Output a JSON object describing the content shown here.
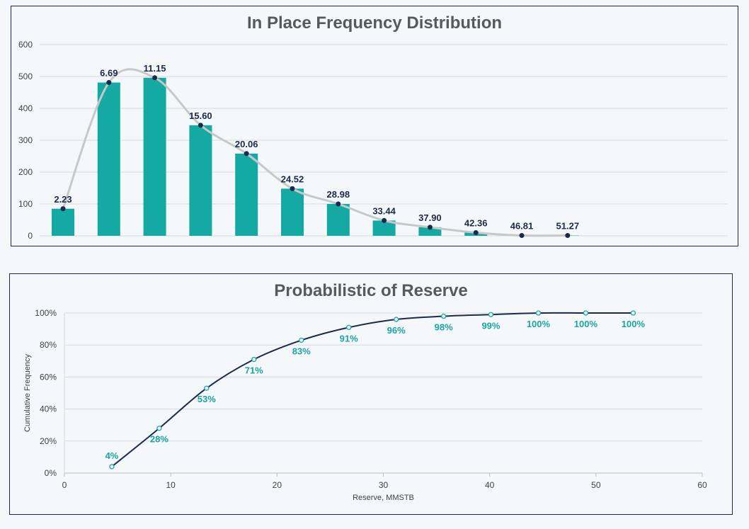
{
  "chart_data": [
    {
      "type": "bar",
      "title": "In Place Frequency Distribution",
      "xlabel": "",
      "ylabel": "",
      "ylim": [
        0,
        600
      ],
      "yticks": [
        "0",
        "100",
        "200",
        "300",
        "400",
        "500",
        "600"
      ],
      "grid": true,
      "categories": [
        "2.23",
        "6.69",
        "11.15",
        "15.60",
        "20.06",
        "24.52",
        "28.98",
        "33.44",
        "37.90",
        "42.36",
        "46.81",
        "51.27"
      ],
      "values": [
        85,
        481,
        496,
        347,
        258,
        148,
        100,
        48,
        27,
        10,
        1,
        1
      ],
      "line_points": [
        85,
        481,
        496,
        347,
        258,
        148,
        100,
        48,
        27,
        10,
        1,
        1
      ],
      "bar_color": "#14a9a3",
      "line_color": "#c8c8c8",
      "marker_color": "#1c2a4a"
    },
    {
      "type": "line",
      "title": "Probabilistic of Reserve",
      "xlabel": "Reserve, MMSTB",
      "ylabel": "Cumulative Frequency",
      "xlim": [
        0,
        60
      ],
      "ylim": [
        0,
        100
      ],
      "xticks": [
        "0",
        "10",
        "20",
        "30",
        "40",
        "50",
        "60"
      ],
      "yticks": [
        "0%",
        "20%",
        "40%",
        "60%",
        "80%",
        "100%"
      ],
      "grid": true,
      "x": [
        4.46,
        8.92,
        13.37,
        17.83,
        22.29,
        26.75,
        31.21,
        35.67,
        40.12,
        44.58,
        49.04,
        53.5
      ],
      "y": [
        4,
        28,
        53,
        71,
        83,
        91,
        96,
        98,
        99,
        100,
        100,
        100
      ],
      "labels": [
        "4%",
        "28%",
        "53%",
        "71%",
        "83%",
        "91%",
        "96%",
        "98%",
        "99%",
        "100%",
        "100%",
        "100%"
      ],
      "line_color": "#1c2a4a",
      "marker_color": "#1aa5a0"
    }
  ]
}
